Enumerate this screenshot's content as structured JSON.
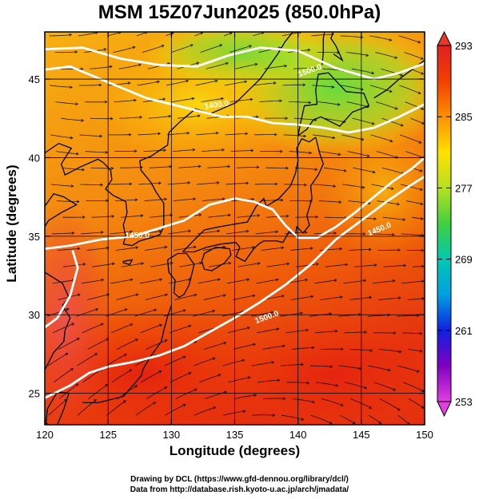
{
  "title": "MSM 15Z07Jun2025 (850.0hPa)",
  "x_axis": {
    "label": "Longitude (degrees)",
    "range": [
      120,
      150
    ],
    "ticks": [
      120,
      125,
      130,
      135,
      140,
      145,
      150
    ]
  },
  "y_axis": {
    "label": "Latitude  (degrees)",
    "range": [
      23,
      48
    ],
    "ticks": [
      25,
      30,
      35,
      40,
      45
    ]
  },
  "colorbar": {
    "range": [
      253,
      293
    ],
    "ticks": [
      253,
      261,
      269,
      277,
      285,
      293
    ],
    "colors": [
      "#e040e0",
      "#8000c0",
      "#1020e0",
      "#00a0e0",
      "#00c8b0",
      "#40d040",
      "#b8e020",
      "#ffe000",
      "#ff9000",
      "#f04000",
      "#e02020"
    ]
  },
  "contours": [
    {
      "label": "1400.0"
    },
    {
      "label": "1450.0"
    },
    {
      "label": "1450.0"
    },
    {
      "label": "1500.0"
    },
    {
      "label": "1500.0"
    }
  ],
  "credits": {
    "line1": "Drawing by DCL (https://www.gfd-dennou.org/library/dcl/)",
    "line2": "Data from http://database.rish.kyoto-u.ac.jp/arch/jmadata/"
  }
}
